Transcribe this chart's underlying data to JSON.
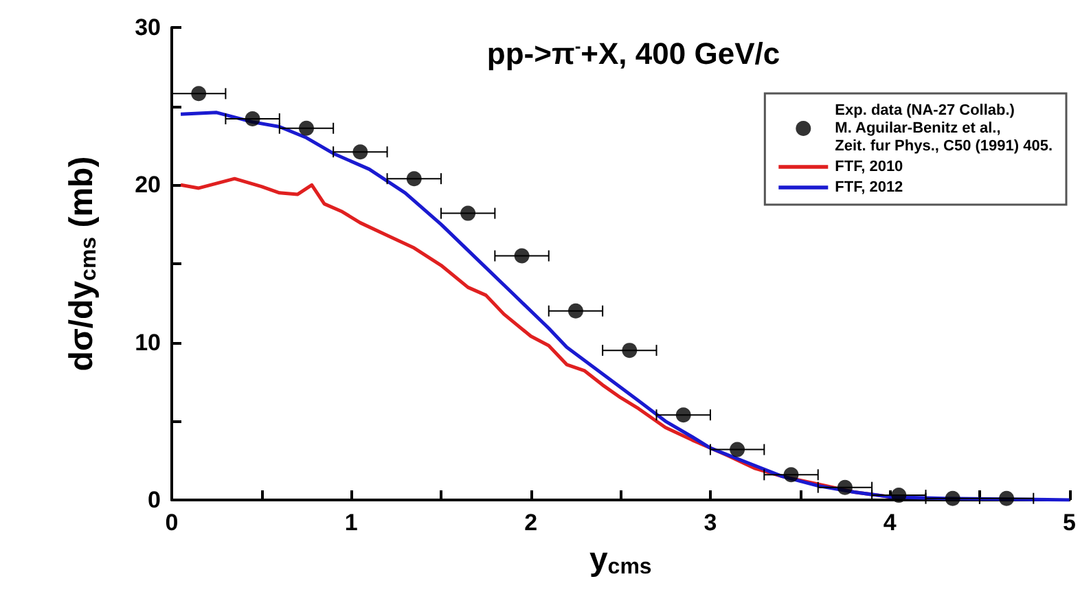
{
  "chart_data": {
    "type": "line",
    "title": "pp->π$^{-}$+X, 400 GeV/c",
    "xlabel": "y$_{cms}$",
    "ylabel": "dσ/dy$_{cms}$ (mb)",
    "xlim": [
      0,
      5
    ],
    "xticks": [
      0,
      {
        "value": 0.5,
        "label": null
      },
      1,
      {
        "value": 1.5,
        "label": null
      },
      2,
      {
        "value": 2.5,
        "label": null
      },
      3,
      {
        "value": 3.5,
        "label": null
      },
      4,
      {
        "value": 4.5,
        "label": null
      },
      5
    ],
    "ylim": [
      0,
      30
    ],
    "yticks": [
      0,
      {
        "value": 5,
        "label": null
      },
      10,
      {
        "value": 15,
        "label": null
      },
      20,
      {
        "value": 25,
        "label": null
      },
      30
    ],
    "grid": false,
    "legend": "top right",
    "line_style": "solid",
    "series": [
      {
        "type": "scatter",
        "name": "Exp. data (NA-27 Collab.)\nM. Aguilar-Benitz et al.,\nZeit. fur Phys., C50 (1991) 405.",
        "color": "#000000",
        "marker": "circle",
        "x": [
          0.15,
          0.45,
          0.75,
          1.05,
          1.35,
          1.65,
          1.95,
          2.25,
          2.55,
          2.85,
          3.15,
          3.45,
          3.75,
          4.05,
          4.35,
          4.65
        ],
        "values": [
          25.8,
          24.2,
          23.6,
          22.1,
          20.4,
          18.2,
          15.5,
          12.0,
          9.5,
          5.4,
          3.2,
          1.6,
          0.8,
          0.3,
          0.1,
          0.1
        ],
        "xerrors": [
          0.15,
          0.15,
          0.15,
          0.15,
          0.15,
          0.15,
          0.15,
          0.15,
          0.15,
          0.15,
          0.15,
          0.15,
          0.15,
          0.15,
          0.15,
          0.15
        ]
      },
      {
        "name": "FTF, 2010",
        "color": "#e02020",
        "marker": "none",
        "x": [
          0.05,
          0.15,
          0.35,
          0.5,
          0.6,
          0.7,
          0.78,
          0.85,
          0.95,
          1.05,
          1.2,
          1.35,
          1.5,
          1.65,
          1.75,
          1.85,
          2.0,
          2.1,
          2.2,
          2.3,
          2.4,
          2.5,
          2.6,
          2.75,
          2.9,
          3.0,
          3.1,
          3.25,
          3.4,
          3.6,
          3.8,
          4.0
        ],
        "values": [
          20.0,
          19.8,
          20.4,
          19.9,
          19.5,
          19.4,
          20.0,
          18.8,
          18.3,
          17.6,
          16.8,
          16.0,
          14.9,
          13.5,
          13.0,
          11.8,
          10.4,
          9.8,
          8.6,
          8.2,
          7.3,
          6.5,
          5.8,
          4.6,
          3.8,
          3.3,
          2.8,
          2.0,
          1.5,
          1.0,
          0.5,
          0.2
        ]
      },
      {
        "name": "FTF, 2012",
        "color": "#1a1ad0",
        "marker": "none",
        "x": [
          0.05,
          0.25,
          0.45,
          0.6,
          0.75,
          0.9,
          1.1,
          1.3,
          1.5,
          1.7,
          1.9,
          2.1,
          2.2,
          2.4,
          2.6,
          2.75,
          2.9,
          3.0,
          3.2,
          3.4,
          3.6,
          3.8,
          4.0,
          4.3,
          5.0
        ],
        "values": [
          24.5,
          24.6,
          24.0,
          23.7,
          23.0,
          22.0,
          21.0,
          19.5,
          17.5,
          15.3,
          13.1,
          10.9,
          9.7,
          8.0,
          6.3,
          5.0,
          4.0,
          3.3,
          2.4,
          1.5,
          0.9,
          0.5,
          0.2,
          0.1,
          0
        ]
      }
    ]
  }
}
